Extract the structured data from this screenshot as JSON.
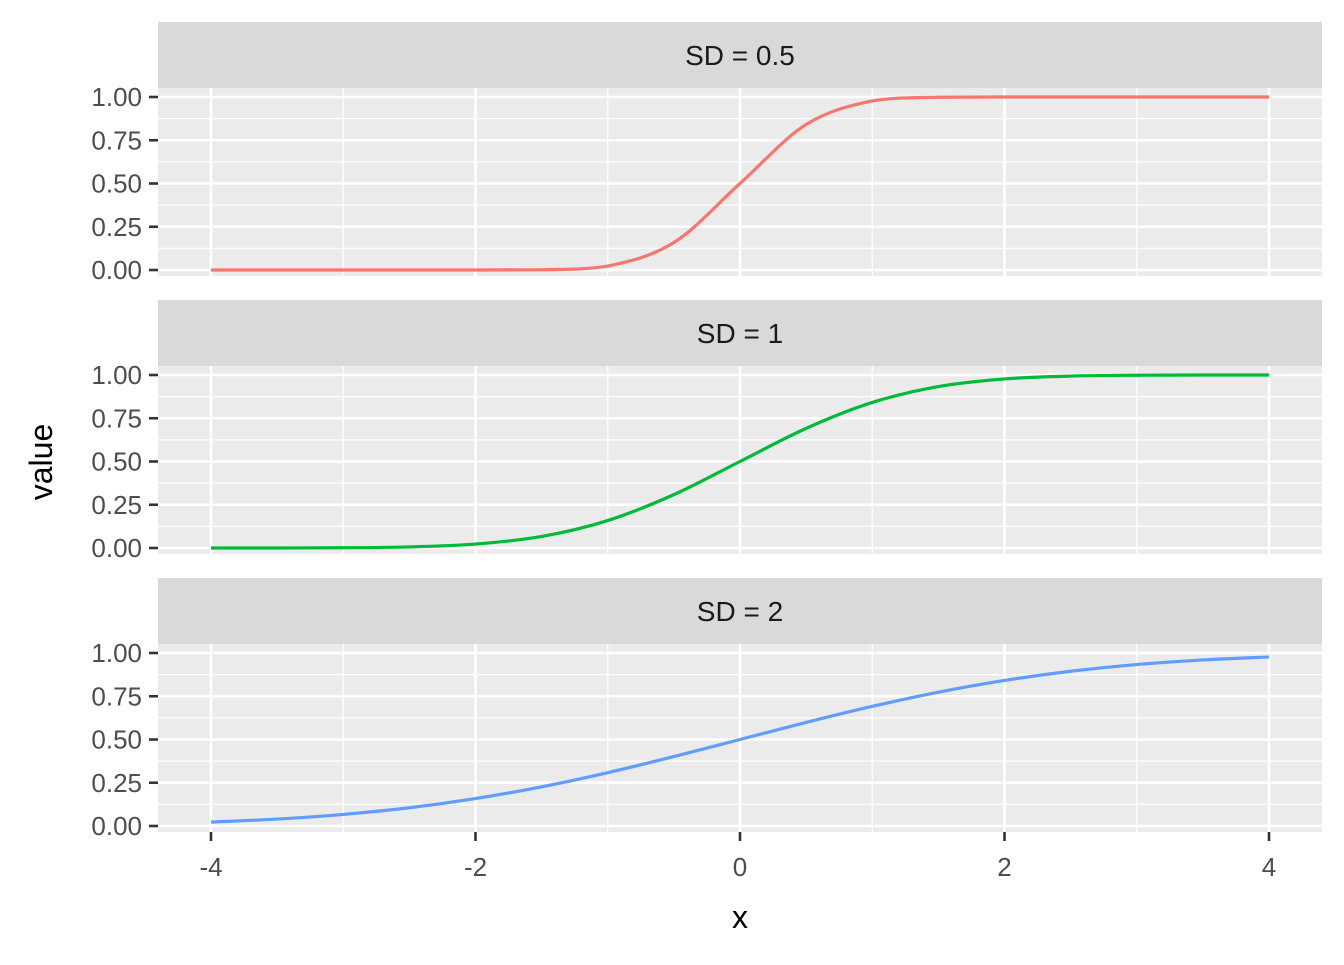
{
  "chart_data": {
    "type": "line",
    "xlabel": "x",
    "ylabel": "value",
    "xlim": [
      -4,
      4
    ],
    "ylim": [
      0,
      1
    ],
    "x_ticks": [
      "-4",
      "-2",
      "0",
      "2",
      "4"
    ],
    "x_tick_values": [
      -4,
      -2,
      0,
      2,
      4
    ],
    "y_ticks": [
      "0.00",
      "0.25",
      "0.50",
      "0.75",
      "1.00"
    ],
    "y_tick_values": [
      0,
      0.25,
      0.5,
      0.75,
      1
    ],
    "grid": true,
    "x": [
      -4,
      -3.5,
      -3,
      -2.5,
      -2,
      -1.5,
      -1,
      -0.5,
      0,
      0.5,
      1,
      1.5,
      2,
      2.5,
      3,
      3.5,
      4
    ],
    "panels": [
      {
        "strip": "SD = 0.5",
        "color": "#F8766D",
        "values": [
          0.0,
          0.0,
          0.0,
          0.0,
          0.0,
          0.0013,
          0.0228,
          0.1587,
          0.5,
          0.8413,
          0.9772,
          0.9987,
          1.0,
          1.0,
          1.0,
          1.0,
          1.0
        ]
      },
      {
        "strip": "SD = 1",
        "color": "#00BA38",
        "values": [
          0.0,
          0.0002,
          0.0013,
          0.0062,
          0.0228,
          0.0668,
          0.1587,
          0.3085,
          0.5,
          0.6915,
          0.8413,
          0.9332,
          0.9772,
          0.9938,
          0.9987,
          0.9998,
          1.0
        ]
      },
      {
        "strip": "SD = 2",
        "color": "#619CFF",
        "values": [
          0.0228,
          0.0401,
          0.0668,
          0.1056,
          0.1587,
          0.2266,
          0.3085,
          0.4013,
          0.5,
          0.5987,
          0.6915,
          0.7734,
          0.8413,
          0.8944,
          0.9332,
          0.9599,
          0.9772
        ]
      }
    ]
  }
}
